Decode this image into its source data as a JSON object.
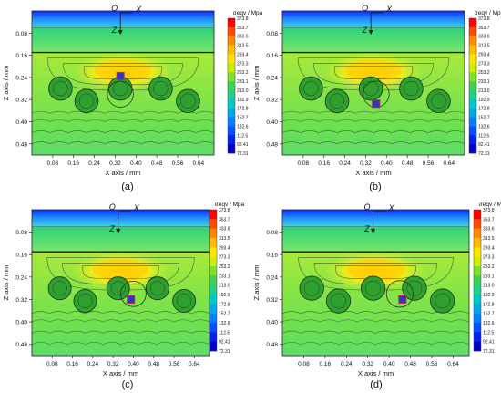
{
  "figure": {
    "panels": [
      {
        "letter": "(a)",
        "marker_x": 0.34,
        "marker_z": 0.235,
        "ring_x": 0.34
      },
      {
        "letter": "(b)",
        "marker_x": 0.36,
        "marker_z": 0.335,
        "ring_x": 0.36
      },
      {
        "letter": "(c)",
        "marker_x": 0.39,
        "marker_z": 0.32,
        "ring_x": 0.4
      },
      {
        "letter": "(d)",
        "marker_x": 0.45,
        "marker_z": 0.32,
        "ring_x": 0.44
      }
    ]
  },
  "chart_data": {
    "type": "heatmap",
    "quantity": "von Mises equivalent stress field (contour plot)",
    "xlabel": "X axis / mm",
    "ylabel": "Z axis / mm",
    "x_ticks": [
      "0.08",
      "0.16",
      "0.24",
      "0.32",
      "0.40",
      "0.48",
      "0.56",
      "0.64"
    ],
    "x_tick_values": [
      0.08,
      0.16,
      0.24,
      0.32,
      0.4,
      0.48,
      0.56,
      0.64
    ],
    "z_ticks": [
      "0.08",
      "0.16",
      "0.24",
      "0.32",
      "0.40",
      "0.48"
    ],
    "z_tick_values": [
      0.08,
      0.16,
      0.24,
      0.32,
      0.4,
      0.48
    ],
    "xlim": [
      0.0,
      0.7
    ],
    "zlim": [
      0.0,
      0.52
    ],
    "z_direction": "downward",
    "origin_labels": {
      "origin": "O",
      "x": "X",
      "z": "Z"
    },
    "layer_boundaries_z": [
      0.06,
      0.15
    ],
    "particle_centers": [
      {
        "x": 0.11,
        "z": 0.28
      },
      {
        "x": 0.21,
        "z": 0.325
      },
      {
        "x": 0.34,
        "z": 0.28
      },
      {
        "x": 0.495,
        "z": 0.28
      },
      {
        "x": 0.6,
        "z": 0.325
      }
    ],
    "colorbar": {
      "title": "σeqv / Mpa",
      "labels": [
        "373.8",
        "353.7",
        "333.6",
        "313.5",
        "293.4",
        "273.3",
        "253.2",
        "233.1",
        "213.0",
        "192.9",
        "172.8",
        "152.7",
        "132.6",
        "112.5",
        "92.41",
        "72.31"
      ],
      "colors": [
        "#ff0000",
        "#ff4a00",
        "#ff8a00",
        "#ffbd00",
        "#ffe600",
        "#ccf000",
        "#7fe22a",
        "#3fd250",
        "#1fd08a",
        "#00c8c8",
        "#00a8e8",
        "#0080ff",
        "#0050ff",
        "#0020f0",
        "#0000c8"
      ]
    }
  }
}
